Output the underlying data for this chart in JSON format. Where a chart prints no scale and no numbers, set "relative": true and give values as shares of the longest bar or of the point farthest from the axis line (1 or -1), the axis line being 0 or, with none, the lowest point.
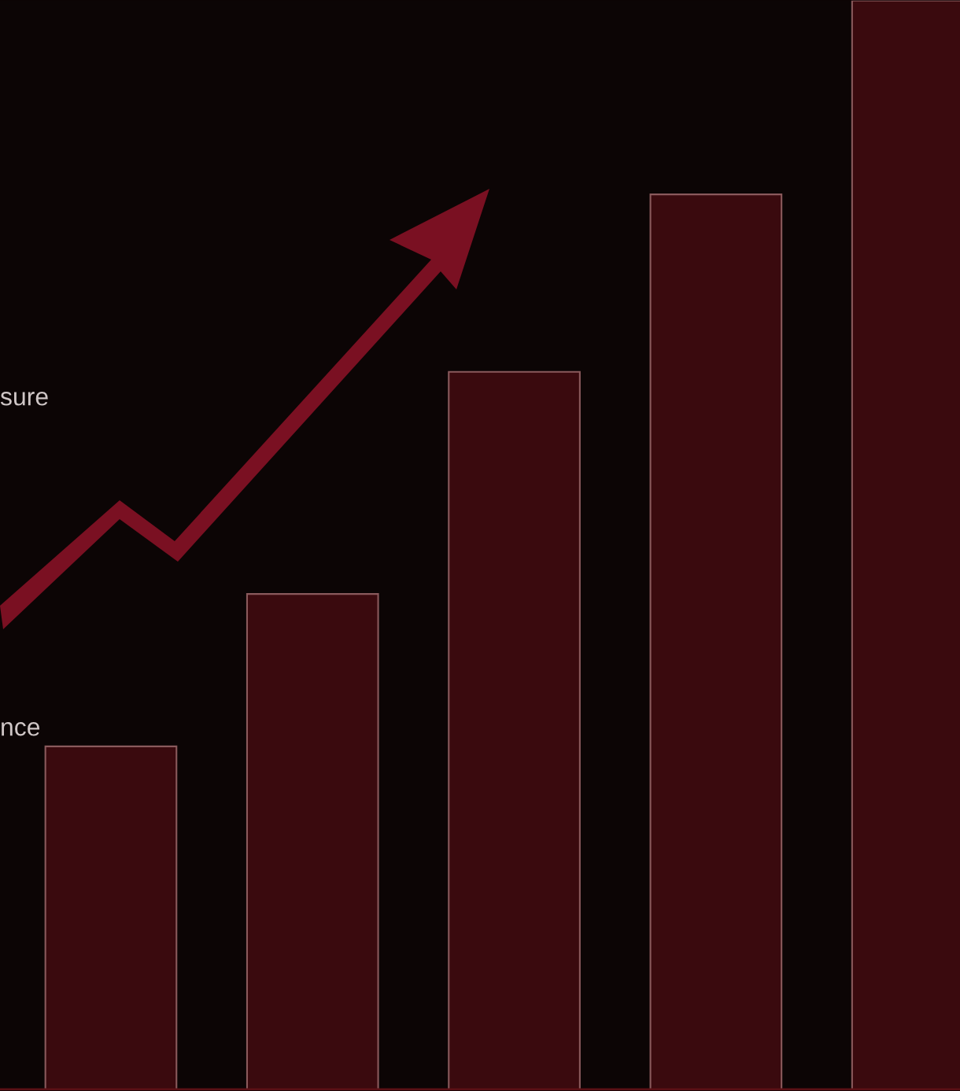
{
  "chart_data": {
    "type": "bar",
    "relative": true,
    "categories": [
      null,
      null,
      null,
      null,
      null
    ],
    "values": [
      0.315,
      0.455,
      0.659,
      0.822,
      1
    ],
    "color": "#3a0a0e",
    "annotations": [
      "sure",
      "nce"
    ]
  }
}
